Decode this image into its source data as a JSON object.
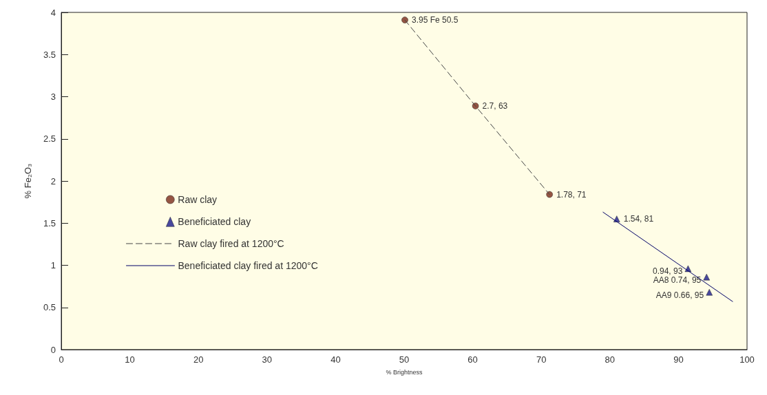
{
  "chart_data": {
    "type": "scatter",
    "xlabel": "% Brightness",
    "ylabel": "% Fe₂O₃",
    "xlim": [
      0,
      100
    ],
    "xticks": [
      0,
      10,
      20,
      30,
      40,
      50,
      60,
      70,
      80,
      90,
      100
    ],
    "ylim": [
      0,
      4
    ],
    "yticks": [
      0,
      0.5,
      1,
      1.5,
      2,
      2.5,
      3,
      3.5,
      4
    ],
    "grid": false,
    "legend": "left",
    "series": [
      {
        "name": "Raw clay",
        "marker": "circle",
        "color": "#7a2a1a",
        "x": [
          50.1,
          60.4,
          71.2
        ],
        "values": [
          3.91,
          2.89,
          1.84
        ]
      },
      {
        "name": "Beneficiated clay",
        "marker": "triangle",
        "color": "#1a1a8c",
        "x": [
          81.0,
          91.4,
          94.1,
          94.5
        ],
        "values": [
          1.55,
          0.96,
          0.86,
          0.68
        ]
      },
      {
        "name": "Raw clay fired at 1200°C",
        "type": "line",
        "marker": "none",
        "line_style": "dashed",
        "color": "#444444",
        "x": [
          50.1,
          60.4,
          71.2
        ],
        "values": [
          3.91,
          2.89,
          1.84
        ]
      },
      {
        "name": "Beneficiated clay fired at 1200°C",
        "type": "line",
        "marker": "none",
        "line_style": "solid",
        "color": "#000066",
        "x": [
          79.0,
          97.9
        ],
        "values": [
          1.63,
          0.57
        ]
      }
    ],
    "annotations": [
      {
        "text": "3.95 Fe 50.5",
        "x": 50.1,
        "y": 3.91
      },
      {
        "text": "2.7, 63",
        "x": 60.4,
        "y": 2.89
      },
      {
        "text": "1.78, 71",
        "x": 71.2,
        "y": 1.84
      },
      {
        "text": "1.54, 81",
        "x": 81.0,
        "y": 1.55
      },
      {
        "text": "0.94, 93",
        "x": 91.4,
        "y": 0.96
      },
      {
        "text": "AA8 0.74, 95",
        "x": 94.1,
        "y": 0.86
      },
      {
        "text": "AA9 0.66, 95",
        "x": 94.5,
        "y": 0.68
      }
    ]
  }
}
